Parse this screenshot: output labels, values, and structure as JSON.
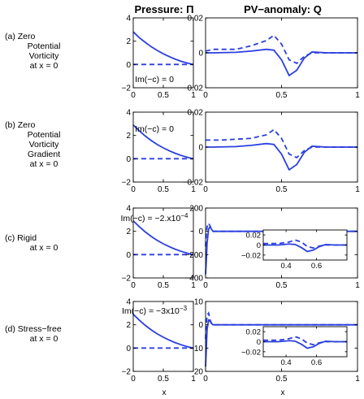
{
  "figure": {
    "left_title": "Pressure: Π",
    "right_title": "PV−anomaly: Q",
    "xlabel": "x"
  },
  "rows": [
    {
      "label_lines": [
        "(a)  Zero",
        "Potential",
        "Vorticity",
        "at x = 0"
      ],
      "annotation": "Im(−c) = 0",
      "annotation_exp": ""
    },
    {
      "label_lines": [
        "(b)  Zero",
        "Potential",
        "Vorticity",
        "Gradient",
        "at x = 0"
      ],
      "annotation": "Im(−c) = 0",
      "annotation_exp": ""
    },
    {
      "label_lines": [
        "(c)  Rigid",
        "at x = 0"
      ],
      "annotation": "Im(−c) = −2.x10",
      "annotation_exp": "−4"
    },
    {
      "label_lines": [
        "(d)  Stress−free",
        "at x = 0"
      ],
      "annotation": "Im(−c) = −3x10",
      "annotation_exp": "−3"
    }
  ],
  "chart_data": [
    {
      "id": "a-left",
      "type": "line",
      "title": "Pressure: Π",
      "xlabel": "",
      "ylabel": "",
      "xlim": [
        0,
        1
      ],
      "ylim": [
        -2,
        4
      ],
      "xticks": [
        0,
        0.5,
        1
      ],
      "xtick_labels": [
        "0",
        "0.5",
        "1"
      ],
      "yticks": [
        -2,
        0,
        2,
        4
      ],
      "ytick_labels": [
        "−2",
        "0",
        "2",
        "4"
      ],
      "series": [
        {
          "style": "solid",
          "x": [
            0,
            0.1,
            0.2,
            0.3,
            0.4,
            0.5,
            0.6,
            0.7,
            0.8,
            0.9,
            1.0
          ],
          "y": [
            2.8,
            2.3,
            1.9,
            1.52,
            1.2,
            0.92,
            0.67,
            0.45,
            0.27,
            0.12,
            0.0
          ]
        },
        {
          "style": "dashed",
          "x": [
            0,
            1
          ],
          "y": [
            0,
            0
          ]
        }
      ]
    },
    {
      "id": "a-right",
      "type": "line",
      "title": "PV−anomaly: Q",
      "xlabel": "",
      "ylabel": "",
      "xlim": [
        0,
        1
      ],
      "ylim": [
        -0.02,
        0.02
      ],
      "xticks": [
        0,
        0.5,
        1
      ],
      "xtick_labels": [
        "0",
        "0.5",
        "1"
      ],
      "yticks": [
        -0.02,
        0,
        0.02
      ],
      "ytick_labels": [
        "−0.02",
        "0",
        "0.02"
      ],
      "series": [
        {
          "style": "solid",
          "x": [
            0,
            0.05,
            0.2,
            0.3,
            0.4,
            0.45,
            0.5,
            0.55,
            0.6,
            0.65,
            0.7,
            0.8,
            0.9,
            1.0
          ],
          "y": [
            0,
            0,
            0.0003,
            0.001,
            0.002,
            0.0015,
            -0.004,
            -0.013,
            -0.01,
            -0.003,
            0.0005,
            0,
            0,
            0
          ]
        },
        {
          "style": "dashed",
          "x": [
            0,
            0.05,
            0.2,
            0.3,
            0.4,
            0.45,
            0.5,
            0.55,
            0.6,
            0.65,
            0.7,
            0.8,
            0.9,
            1.0
          ],
          "y": [
            0.001,
            0.002,
            0.002,
            0.004,
            0.007,
            0.01,
            0.005,
            -0.004,
            -0.006,
            -0.002,
            0,
            0,
            0,
            0
          ]
        }
      ]
    },
    {
      "id": "b-left",
      "type": "line",
      "title": "",
      "xlabel": "",
      "ylabel": "",
      "xlim": [
        0,
        1
      ],
      "ylim": [
        -2,
        4
      ],
      "xticks": [
        0,
        0.5,
        1
      ],
      "xtick_labels": [
        "0",
        "0.5",
        "1"
      ],
      "yticks": [
        -2,
        0,
        2,
        4
      ],
      "ytick_labels": [
        "−2",
        "0",
        "2",
        "4"
      ],
      "series": [
        {
          "style": "solid",
          "x": [
            0,
            0.1,
            0.2,
            0.3,
            0.4,
            0.5,
            0.6,
            0.7,
            0.8,
            0.9,
            1.0
          ],
          "y": [
            2.9,
            2.4,
            1.95,
            1.56,
            1.22,
            0.93,
            0.68,
            0.46,
            0.28,
            0.12,
            0.0
          ]
        },
        {
          "style": "dashed",
          "x": [
            0,
            1
          ],
          "y": [
            0,
            0
          ]
        }
      ]
    },
    {
      "id": "b-right",
      "type": "line",
      "title": "",
      "xlabel": "",
      "ylabel": "",
      "xlim": [
        0,
        1
      ],
      "ylim": [
        -0.02,
        0.02
      ],
      "xticks": [
        0,
        0.5,
        1
      ],
      "xtick_labels": [
        "0",
        "0.5",
        "1"
      ],
      "yticks": [
        -0.02,
        0,
        0.02
      ],
      "ytick_labels": [
        "−0.02",
        "0",
        "0.02"
      ],
      "series": [
        {
          "style": "solid",
          "x": [
            0,
            0.05,
            0.2,
            0.3,
            0.4,
            0.45,
            0.5,
            0.55,
            0.6,
            0.65,
            0.7,
            0.8,
            0.9,
            1.0
          ],
          "y": [
            0,
            0,
            0.0003,
            0.001,
            0.002,
            0.0015,
            -0.004,
            -0.013,
            -0.01,
            -0.003,
            0.0005,
            0,
            0,
            0
          ]
        },
        {
          "style": "dashed",
          "x": [
            0,
            0.1,
            0.2,
            0.3,
            0.4,
            0.45,
            0.5,
            0.55,
            0.6,
            0.65,
            0.7,
            0.8,
            0.9,
            1.0
          ],
          "y": [
            0.004,
            0.004,
            0.0045,
            0.005,
            0.007,
            0.01,
            0.005,
            -0.004,
            -0.006,
            -0.002,
            0,
            0,
            0,
            0
          ]
        }
      ]
    },
    {
      "id": "c-left",
      "type": "line",
      "title": "",
      "xlabel": "",
      "ylabel": "",
      "xlim": [
        0,
        1
      ],
      "ylim": [
        -2,
        4
      ],
      "xticks": [
        0,
        0.5,
        1
      ],
      "xtick_labels": [
        "0",
        "0.5",
        "1"
      ],
      "yticks": [
        -2,
        0,
        2,
        4
      ],
      "ytick_labels": [
        "−2",
        "0",
        "2",
        "4"
      ],
      "series": [
        {
          "style": "solid",
          "x": [
            0,
            0.1,
            0.2,
            0.3,
            0.4,
            0.5,
            0.6,
            0.7,
            0.8,
            0.9,
            1.0
          ],
          "y": [
            2.9,
            2.4,
            1.95,
            1.56,
            1.22,
            0.93,
            0.68,
            0.46,
            0.28,
            0.12,
            0.0
          ]
        },
        {
          "style": "dashed",
          "x": [
            0,
            1
          ],
          "y": [
            0,
            0
          ]
        }
      ]
    },
    {
      "id": "c-right",
      "type": "line",
      "title": "",
      "xlabel": "",
      "ylabel": "",
      "xlim": [
        0,
        1
      ],
      "ylim": [
        -400,
        200
      ],
      "xticks": [
        0,
        0.5,
        1
      ],
      "xtick_labels": [
        "0",
        "0.5",
        "1"
      ],
      "yticks": [
        -400,
        -200,
        0,
        200
      ],
      "ytick_labels": [
        "−400",
        "−200",
        "0",
        "200"
      ],
      "series": [
        {
          "style": "solid",
          "x": [
            0,
            0.005,
            0.01,
            0.02,
            0.03,
            0.04,
            0.05,
            0.07,
            0.1,
            0.2,
            1.0
          ],
          "y": [
            -370,
            -250,
            -100,
            20,
            40,
            15,
            0,
            0,
            0,
            0,
            0
          ]
        },
        {
          "style": "dashed",
          "x": [
            0,
            0.005,
            0.01,
            0.02,
            0.03,
            0.04,
            0.05,
            0.07,
            0.1,
            0.2,
            1.0
          ],
          "y": [
            -130,
            -20,
            40,
            70,
            45,
            10,
            0,
            0,
            0,
            0,
            0
          ]
        }
      ],
      "inset": {
        "xlim": [
          0.25,
          0.8
        ],
        "ylim": [
          -0.03,
          0.03
        ],
        "xticks": [
          0.4,
          0.6
        ],
        "xtick_labels": [
          "0.4",
          "0.6"
        ],
        "yticks": [
          -0.02,
          0,
          0.02
        ],
        "ytick_labels": [
          "−0.02",
          "0",
          "0.02"
        ],
        "series": [
          {
            "style": "solid",
            "x": [
              0.25,
              0.35,
              0.42,
              0.46,
              0.5,
              0.54,
              0.58,
              0.62,
              0.66,
              0.72,
              0.8
            ],
            "y": [
              0,
              0,
              0.002,
              0.001,
              -0.005,
              -0.013,
              -0.01,
              -0.003,
              0.001,
              0,
              0
            ]
          },
          {
            "style": "dashed",
            "x": [
              0.25,
              0.35,
              0.42,
              0.46,
              0.5,
              0.54,
              0.58,
              0.62,
              0.66,
              0.72,
              0.8
            ],
            "y": [
              0.003,
              0.003,
              0.006,
              0.01,
              0.006,
              -0.003,
              -0.006,
              -0.002,
              0,
              0,
              0
            ]
          }
        ]
      }
    },
    {
      "id": "d-left",
      "type": "line",
      "title": "",
      "xlabel": "x",
      "ylabel": "",
      "xlim": [
        0,
        1
      ],
      "ylim": [
        -2,
        4
      ],
      "xticks": [
        0,
        0.5,
        1
      ],
      "xtick_labels": [
        "0",
        "0.5",
        "1"
      ],
      "yticks": [
        -2,
        0,
        2,
        4
      ],
      "ytick_labels": [
        "−2",
        "0",
        "2",
        "4"
      ],
      "series": [
        {
          "style": "solid",
          "x": [
            0,
            0.1,
            0.2,
            0.3,
            0.4,
            0.5,
            0.6,
            0.7,
            0.8,
            0.9,
            1.0
          ],
          "y": [
            2.9,
            2.4,
            1.95,
            1.56,
            1.22,
            0.93,
            0.68,
            0.46,
            0.28,
            0.12,
            0.0
          ]
        },
        {
          "style": "dashed",
          "x": [
            0,
            1
          ],
          "y": [
            0,
            0
          ]
        }
      ]
    },
    {
      "id": "d-right",
      "type": "line",
      "title": "",
      "xlabel": "x",
      "ylabel": "",
      "xlim": [
        0,
        1
      ],
      "ylim": [
        -20,
        10
      ],
      "xticks": [
        0,
        0.5,
        1
      ],
      "xtick_labels": [
        "0",
        "0.5",
        "1"
      ],
      "yticks": [
        -20,
        -10,
        0,
        10
      ],
      "ytick_labels": [
        "−20",
        "−10",
        "0",
        "10"
      ],
      "series": [
        {
          "style": "solid",
          "x": [
            0,
            0.005,
            0.01,
            0.02,
            0.03,
            0.04,
            0.05,
            0.07,
            0.1,
            0.2,
            1.0
          ],
          "y": [
            -18,
            -10,
            -2,
            2,
            1.5,
            0.5,
            0,
            0,
            0,
            0,
            0
          ]
        },
        {
          "style": "dashed",
          "x": [
            0,
            0.005,
            0.01,
            0.02,
            0.03,
            0.04,
            0.05,
            0.07,
            0.1,
            0.2,
            1.0
          ],
          "y": [
            -6,
            0,
            4,
            5,
            2,
            0.5,
            0,
            0,
            0,
            0,
            0
          ]
        }
      ],
      "inset": {
        "xlim": [
          0.25,
          0.8
        ],
        "ylim": [
          -0.03,
          0.03
        ],
        "xticks": [
          0.4,
          0.6
        ],
        "xtick_labels": [
          "0.4",
          "0.6"
        ],
        "yticks": [
          -0.02,
          0,
          0.02
        ],
        "ytick_labels": [
          "−0.02",
          "0",
          "0.02"
        ],
        "series": [
          {
            "style": "solid",
            "x": [
              0.25,
              0.35,
              0.42,
              0.46,
              0.5,
              0.54,
              0.58,
              0.62,
              0.66,
              0.72,
              0.8
            ],
            "y": [
              0,
              0,
              0.002,
              0.001,
              -0.005,
              -0.013,
              -0.01,
              -0.003,
              0.001,
              0,
              0
            ]
          },
          {
            "style": "dashed",
            "x": [
              0.25,
              0.35,
              0.42,
              0.46,
              0.5,
              0.54,
              0.58,
              0.62,
              0.66,
              0.72,
              0.8
            ],
            "y": [
              0.003,
              0.003,
              0.006,
              0.01,
              0.006,
              -0.003,
              -0.006,
              -0.002,
              0,
              0,
              0
            ]
          }
        ]
      }
    }
  ]
}
